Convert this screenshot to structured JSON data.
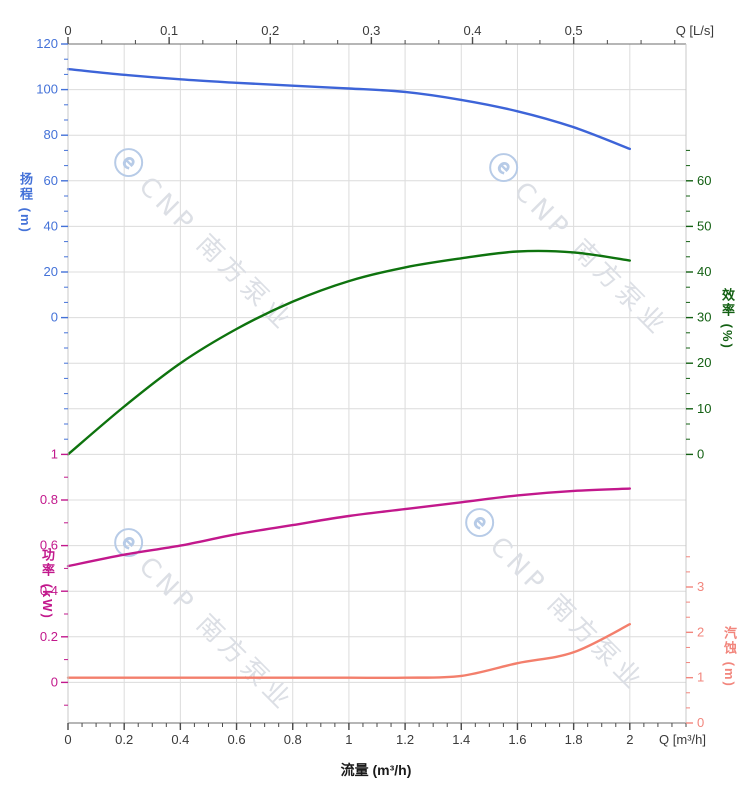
{
  "watermark": {
    "logo": "ⓔ",
    "text": "CNP 南方泵业"
  },
  "chart_data": {
    "type": "line",
    "title": "",
    "x_label_bottom": "流量 (m³/h)",
    "x": [
      0,
      0.2,
      0.4,
      0.6,
      0.8,
      1.0,
      1.2,
      1.4,
      1.6,
      1.8,
      2.0
    ],
    "series": [
      {
        "name": "head",
        "label": "扬程",
        "unit": "m",
        "axis": "head",
        "color": "#3d64d8",
        "values": [
          109,
          106.5,
          104.5,
          103,
          101.7,
          100.5,
          99,
          95.5,
          90.5,
          83.5,
          74
        ]
      },
      {
        "name": "efficiency",
        "label": "效率",
        "unit": "%",
        "axis": "eff",
        "color": "#0e730e",
        "values": [
          0,
          10.5,
          20,
          27.5,
          33.5,
          38,
          41,
          43,
          44.5,
          44.3,
          42.5
        ]
      },
      {
        "name": "power",
        "label": "功率",
        "unit": "kW",
        "axis": "power",
        "color": "#c2188c",
        "values": [
          0.51,
          0.56,
          0.6,
          0.65,
          0.69,
          0.73,
          0.76,
          0.79,
          0.82,
          0.84,
          0.85
        ]
      },
      {
        "name": "npsh",
        "label": "汽蚀",
        "unit": "m",
        "axis": "npsh",
        "color": "#f37f6c",
        "values": [
          1,
          1,
          1,
          1,
          1,
          1,
          1,
          1.04,
          1.32,
          1.56,
          2.18
        ]
      }
    ],
    "axes": {
      "top": {
        "label": "Q [L/s]",
        "tick_labels": [
          "0",
          "0.1",
          "0.2",
          "0.3",
          "0.4",
          "0.5"
        ],
        "tick_values": [
          0,
          0.1,
          0.2,
          0.3,
          0.4,
          0.5
        ],
        "range": [
          0,
          0.6111
        ],
        "color": "#3a3a3a"
      },
      "bottom": {
        "label": "Q [m³/h]",
        "title": "流量 (m³/h)",
        "tick_labels": [
          "0",
          "0.2",
          "0.4",
          "0.6",
          "0.8",
          "1",
          "1.2",
          "1.4",
          "1.6",
          "1.8",
          "2"
        ],
        "tick_values": [
          0,
          0.2,
          0.4,
          0.6,
          0.8,
          1,
          1.2,
          1.4,
          1.6,
          1.8,
          2
        ],
        "range": [
          0,
          2.2
        ],
        "color": "#3a3a3a"
      },
      "head": {
        "title": "扬程 (m)",
        "tick_labels": [
          "120",
          "100",
          "80",
          "60",
          "40",
          "20",
          "0"
        ],
        "tick_values": [
          120,
          100,
          80,
          60,
          40,
          20,
          0
        ],
        "color": "#4472d8"
      },
      "eff": {
        "title": "效率 (%)",
        "tick_labels": [
          "60",
          "50",
          "40",
          "30",
          "20",
          "10",
          "0"
        ],
        "tick_values": [
          60,
          50,
          40,
          30,
          20,
          10,
          0
        ],
        "color": "#136013"
      },
      "power": {
        "title": "功率 (kW)",
        "tick_labels": [
          "1",
          "0.8",
          "0.6",
          "0.4",
          "0.2",
          "0"
        ],
        "tick_values": [
          1,
          0.8,
          0.6,
          0.4,
          0.2,
          0
        ],
        "color": "#c2188c"
      },
      "npsh": {
        "title": "汽蚀 (m)",
        "tick_labels": [
          "3",
          "2",
          "1",
          "0"
        ],
        "tick_values": [
          3,
          2,
          1,
          0
        ],
        "color": "#f2867d"
      }
    },
    "grid": true,
    "legend": "none"
  }
}
